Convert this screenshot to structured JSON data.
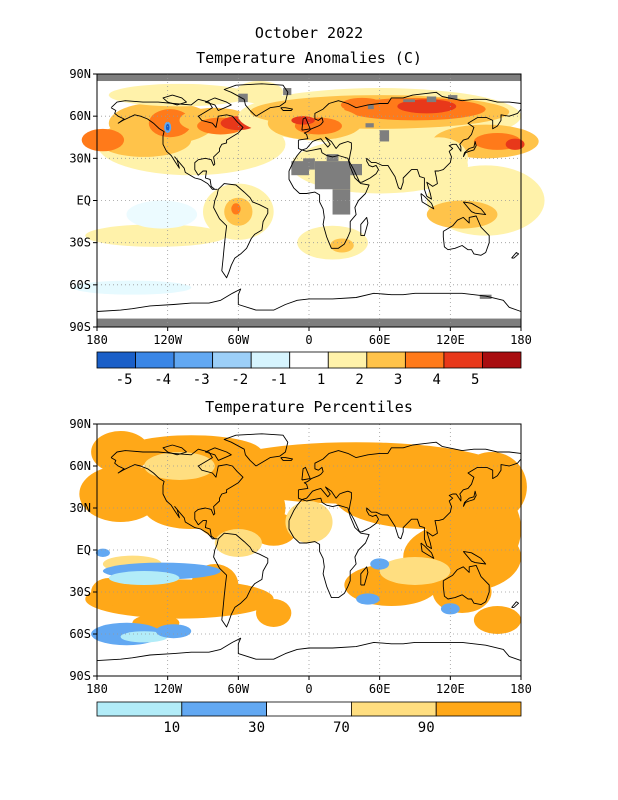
{
  "header": {
    "title": "October 2022",
    "anomaly_subtitle": "Temperature Anomalies (C)",
    "percentile_subtitle": "Temperature Percentiles"
  },
  "axes": {
    "lat_labels": [
      "90N",
      "60N",
      "30N",
      "EQ",
      "30S",
      "60S",
      "90S"
    ],
    "lon_labels": [
      "180",
      "120W",
      "60W",
      "0",
      "60E",
      "120E",
      "180"
    ]
  },
  "anomaly_legend": {
    "labels": [
      "-5",
      "-4",
      "-3",
      "-2",
      "-1",
      "1",
      "2",
      "3",
      "4",
      "5"
    ],
    "colors": [
      "#1a5fc8",
      "#3a86e6",
      "#62a8f2",
      "#9ccff8",
      "#d6f4fe",
      "#ffffff",
      "#fff2aa",
      "#ffc34a",
      "#ff7a1a",
      "#e8381a",
      "#a80d10"
    ]
  },
  "percentile_legend": {
    "labels": [
      "10",
      "30",
      "70",
      "90"
    ],
    "colors": [
      "#b2ecf8",
      "#62a8f2",
      "#ffffff",
      "#ffde80",
      "#ffa818"
    ]
  },
  "colors": {
    "no_data": "#7e7e7e",
    "coast": "#000000",
    "grid": "#999999"
  }
}
